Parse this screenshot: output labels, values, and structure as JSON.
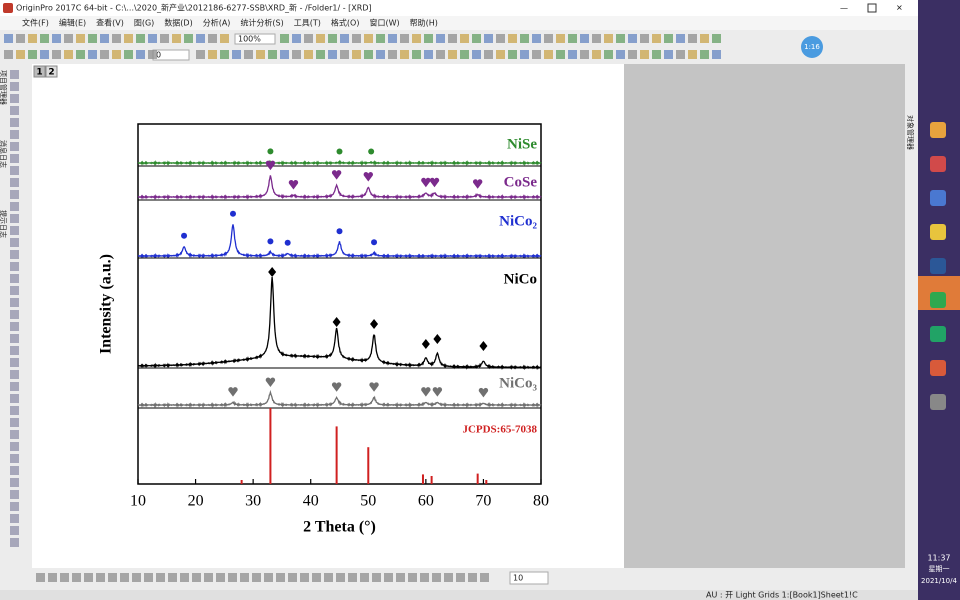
{
  "window": {
    "title": "OriginPro 2017C 64-bit - C:\\...\\2020_新产业\\2012186-6277-SSB\\XRD_新 - /Folder1/ - [XRD]"
  },
  "menu": [
    "文件(F)",
    "编辑(E)",
    "查看(V)",
    "图(G)",
    "数据(D)",
    "分析(A)",
    "统计分析(S)",
    "工具(T)",
    "格式(O)",
    "窗口(W)",
    "帮助(H)"
  ],
  "toolbar": {
    "zoom": "100%",
    "font_size": "0",
    "bottom_size": "10"
  },
  "layer_tabs": [
    "1",
    "2"
  ],
  "left_panels": [
    "项目管理器",
    "消息日志",
    "提示日志"
  ],
  "right_panel": "对象管理器",
  "badge": "1:16",
  "chart_data": {
    "type": "line",
    "xlabel": "2 Theta (°)",
    "ylabel": "Intensity (a.u.)",
    "xlim": [
      10,
      80
    ],
    "xticks": [
      10,
      20,
      30,
      40,
      50,
      60,
      70,
      80
    ],
    "ylim": [
      0,
      100
    ],
    "series": [
      {
        "name": "NiSe",
        "color": "#2e8b2e",
        "marker": "circle",
        "x": [
          33,
          45,
          50.5
        ],
        "values": [
          6,
          5,
          5
        ]
      },
      {
        "name": "CoSe",
        "color": "#7b2a8c",
        "marker": "heart",
        "x": [
          33,
          37,
          44.5,
          50,
          60,
          61.5,
          69
        ],
        "values": [
          55,
          4,
          30,
          25,
          10,
          10,
          6
        ]
      },
      {
        "name": "NiCo₂",
        "color": "#1f2fd0",
        "marker": "circle",
        "x": [
          18,
          26.5,
          33,
          36,
          45,
          51
        ],
        "values": [
          20,
          68,
          8,
          5,
          30,
          6
        ]
      },
      {
        "name": "NiCo",
        "color": "#000000",
        "marker": "diamond",
        "x": [
          33.3,
          44.5,
          51,
          60,
          62,
          70
        ],
        "values": [
          80,
          30,
          28,
          8,
          13,
          6
        ]
      },
      {
        "name": "NiCo₃",
        "color": "#707070",
        "marker": "heart",
        "x": [
          26.5,
          33,
          44.5,
          51,
          60,
          62,
          70
        ],
        "values": [
          6,
          30,
          18,
          18,
          6,
          6,
          4
        ]
      },
      {
        "name": "JCPDS:65-7038",
        "color": "#d02020",
        "marker": "stick",
        "x": [
          28,
          33,
          44.5,
          50,
          59.5,
          61,
          69,
          70.5
        ],
        "values": [
          5,
          95,
          72,
          46,
          12,
          10,
          13,
          5
        ]
      }
    ]
  },
  "status_bar": "AU : 开 Light Grids 1:[Book1]Sheet1!C",
  "taskbar": {
    "time": "11:37",
    "weekday": "星期一",
    "date": "2021/10/4"
  }
}
